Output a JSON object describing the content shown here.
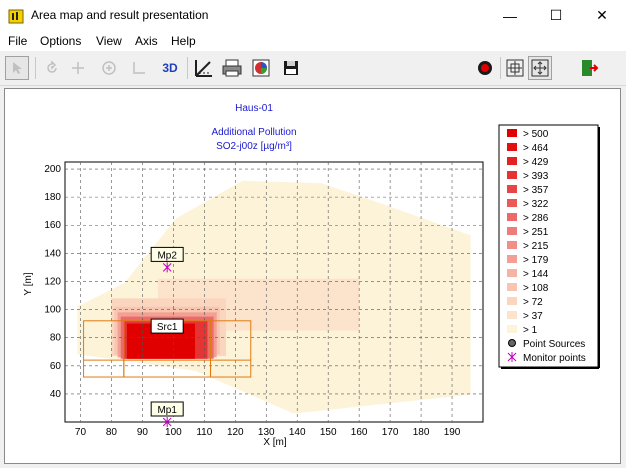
{
  "window": {
    "title": "Area map and result presentation",
    "minimize": "—",
    "maximize": "☐",
    "close": "✕"
  },
  "menu": [
    "File",
    "Options",
    "View",
    "Axis",
    "Help"
  ],
  "toolbar": {
    "view3d_label": "3D"
  },
  "chart_data": {
    "type": "heatmap",
    "title": "Haus-01",
    "subtitle_line1": "Additional Pollution",
    "subtitle_line2": "SO2-j00z [µg/m³]",
    "xlabel": "X [m]",
    "ylabel": "Y [m]",
    "xlim": [
      65,
      200
    ],
    "ylim": [
      20,
      205
    ],
    "xticks": [
      70,
      80,
      90,
      100,
      110,
      120,
      130,
      140,
      150,
      160,
      170,
      180,
      190
    ],
    "yticks": [
      40,
      60,
      80,
      100,
      120,
      140,
      160,
      180,
      200
    ],
    "grid": true,
    "legend_position": "right",
    "legend": [
      {
        "label": "> 500",
        "color": "#e00000"
      },
      {
        "label": "> 464",
        "color": "#e41010"
      },
      {
        "label": "> 429",
        "color": "#e52222"
      },
      {
        "label": "> 393",
        "color": "#e63434"
      },
      {
        "label": "> 357",
        "color": "#e84646"
      },
      {
        "label": "> 322",
        "color": "#ea5858"
      },
      {
        "label": "> 286",
        "color": "#ec6a6a"
      },
      {
        "label": "> 251",
        "color": "#ee7c7c"
      },
      {
        "label": "> 215",
        "color": "#f08e88"
      },
      {
        "label": "> 179",
        "color": "#f3a094"
      },
      {
        "label": "> 144",
        "color": "#f5b3a2"
      },
      {
        "label": "> 108",
        "color": "#f8c5b0"
      },
      {
        "label": "> 72",
        "color": "#fad6bf"
      },
      {
        "label": "> 37",
        "color": "#fce4cc"
      },
      {
        "label": "> 1",
        "color": "#fdf3d8"
      },
      {
        "label": "Point Sources",
        "marker": "point-source"
      },
      {
        "label": "Monitor points",
        "marker": "monitor"
      }
    ],
    "sources": [
      {
        "name": "Src1",
        "x": 98,
        "y": 79
      }
    ],
    "monitors": [
      {
        "name": "Mp2",
        "x": 98,
        "y": 130
      },
      {
        "name": "Mp1",
        "x": 98,
        "y": 20
      }
    ],
    "source_boxes": [
      {
        "x0": 71,
        "x1": 84,
        "y0": 52,
        "y1": 92
      },
      {
        "x0": 84,
        "x1": 112,
        "y0": 52,
        "y1": 92
      },
      {
        "x0": 112,
        "x1": 125,
        "y0": 52,
        "y1": 92
      }
    ],
    "source_box_divider_y": 64,
    "plume": [
      {
        "x0": 69,
        "x1": 196,
        "y0": 26,
        "y1": 195,
        "level": 14,
        "shape": "envelope"
      },
      {
        "x0": 95,
        "x1": 160,
        "y0": 85,
        "y1": 122,
        "level": 13
      },
      {
        "x0": 80,
        "x1": 117,
        "y0": 67,
        "y1": 108,
        "level": 12
      },
      {
        "x0": 81,
        "x1": 115,
        "y0": 68,
        "y1": 102,
        "level": 11
      },
      {
        "x0": 82,
        "x1": 114,
        "y0": 66,
        "y1": 98,
        "level": 9
      },
      {
        "x0": 83,
        "x1": 113,
        "y0": 65,
        "y1": 95,
        "level": 6
      },
      {
        "x0": 84,
        "x1": 111,
        "y0": 65,
        "y1": 92,
        "level": 3
      },
      {
        "x0": 85,
        "x1": 107,
        "y0": 65,
        "y1": 90,
        "level": 0
      }
    ]
  }
}
